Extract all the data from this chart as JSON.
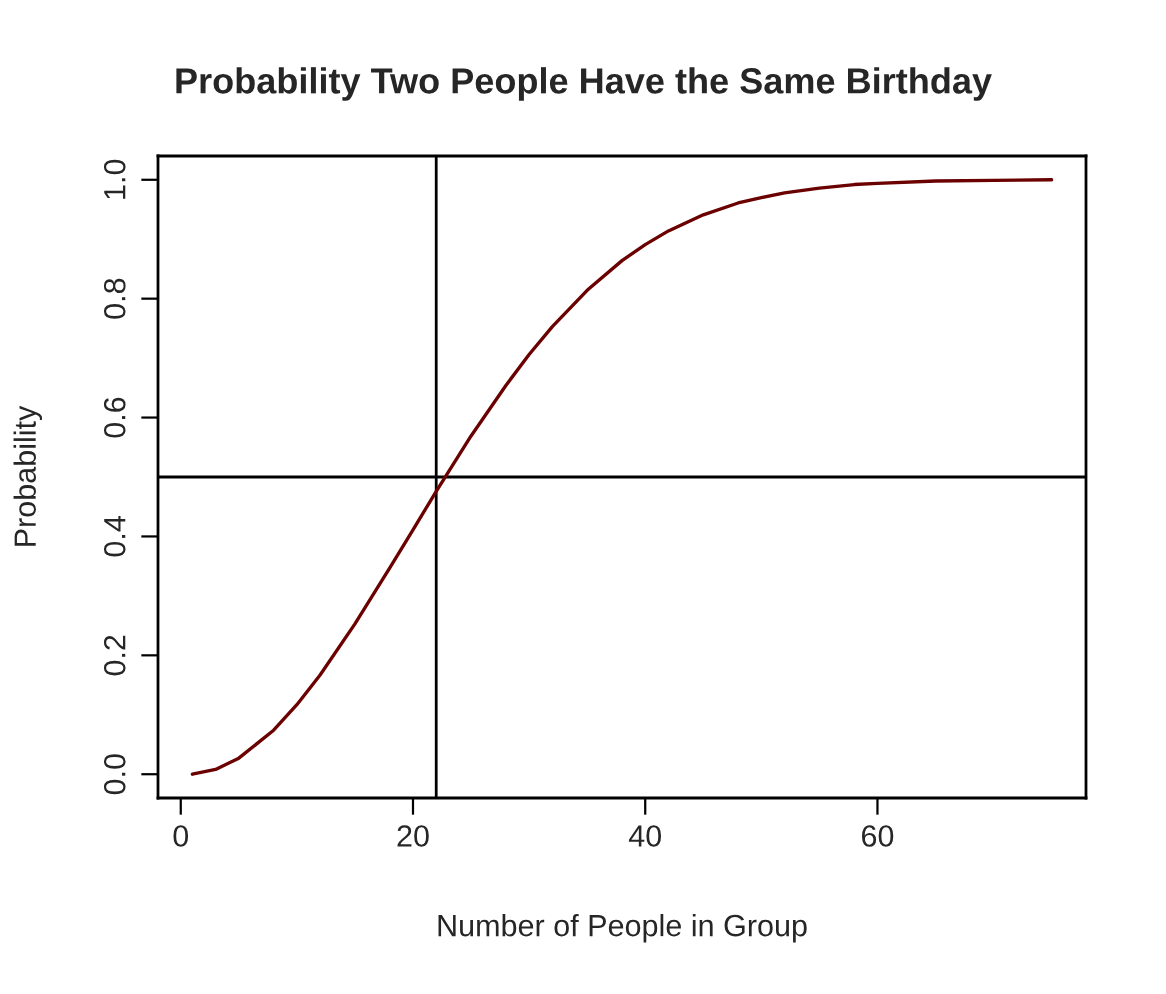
{
  "chart_data": {
    "type": "line",
    "title": "Probability Two People Have the Same Birthday",
    "xlabel": "Number of People in Group",
    "ylabel": "Probability",
    "x": [
      1,
      3,
      5,
      8,
      10,
      12,
      15,
      18,
      20,
      22,
      23,
      25,
      28,
      30,
      32,
      35,
      38,
      40,
      42,
      45,
      48,
      50,
      52,
      55,
      58,
      60,
      65,
      70,
      75
    ],
    "series": [
      {
        "color": "#6b0000",
        "values": [
          0.0,
          0.008,
          0.027,
          0.074,
          0.117,
          0.167,
          0.253,
          0.347,
          0.411,
          0.476,
          0.507,
          0.569,
          0.654,
          0.706,
          0.753,
          0.814,
          0.864,
          0.891,
          0.914,
          0.941,
          0.961,
          0.97,
          0.978,
          0.986,
          0.992,
          0.994,
          0.998,
          0.999,
          1.0
        ]
      }
    ],
    "xlim": [
      -1.96,
      77.96
    ],
    "ylim": [
      -0.04,
      1.04
    ],
    "xticks": [
      0,
      20,
      40,
      60
    ],
    "yticks": [
      {
        "value": 0,
        "label": "0.0"
      },
      {
        "value": 0.2,
        "label": "0.2"
      },
      {
        "value": 0.4,
        "label": "0.4"
      },
      {
        "value": 0.6,
        "label": "0.6"
      },
      {
        "value": 0.8,
        "label": "0.8"
      },
      {
        "value": 1,
        "label": "1.0"
      }
    ],
    "ref_lines": [
      {
        "axis": "x",
        "value": 22,
        "color": "#000000"
      },
      {
        "axis": "y",
        "value": 0.5,
        "color": "#000000"
      }
    ],
    "grid": false,
    "legend": false,
    "marker": "none",
    "line_style": "solid"
  }
}
